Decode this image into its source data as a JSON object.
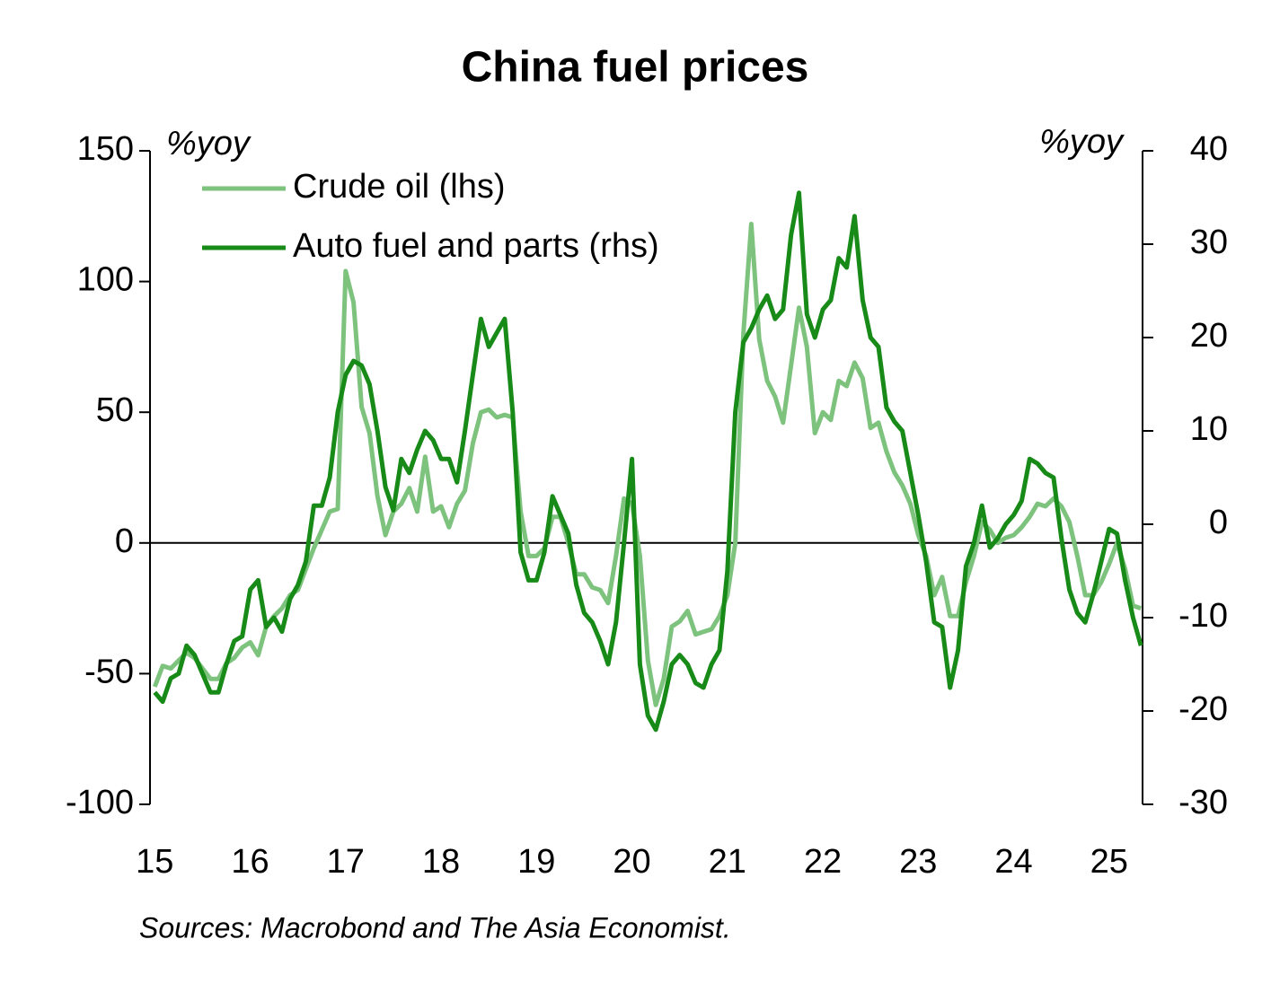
{
  "chart_data": {
    "type": "line",
    "title": "China fuel prices",
    "ylabel": "%yoy",
    "y2label": "%yoy",
    "source": "Sources: Macrobond and The Asia Economist.",
    "x": [
      15,
      15.083,
      15.167,
      15.25,
      15.333,
      15.417,
      15.5,
      15.583,
      15.667,
      15.75,
      15.833,
      15.917,
      16,
      16.083,
      16.167,
      16.25,
      16.333,
      16.417,
      16.5,
      16.583,
      16.667,
      16.75,
      16.833,
      16.917,
      17,
      17.083,
      17.167,
      17.25,
      17.333,
      17.417,
      17.5,
      17.583,
      17.667,
      17.75,
      17.833,
      17.917,
      18,
      18.083,
      18.167,
      18.25,
      18.333,
      18.417,
      18.5,
      18.583,
      18.667,
      18.75,
      18.833,
      18.917,
      19,
      19.083,
      19.167,
      19.25,
      19.333,
      19.417,
      19.5,
      19.583,
      19.667,
      19.75,
      19.833,
      19.917,
      20,
      20.083,
      20.167,
      20.25,
      20.333,
      20.417,
      20.5,
      20.583,
      20.667,
      20.75,
      20.833,
      20.917,
      21,
      21.083,
      21.167,
      21.25,
      21.333,
      21.417,
      21.5,
      21.583,
      21.667,
      21.75,
      21.833,
      21.917,
      22,
      22.083,
      22.167,
      22.25,
      22.333,
      22.417,
      22.5,
      22.583,
      22.667,
      22.75,
      22.833,
      22.917,
      23,
      23.083,
      23.167,
      23.25,
      23.333,
      23.417,
      23.5,
      23.583,
      23.667,
      23.75,
      23.833,
      23.917,
      24,
      24.083,
      24.167,
      24.25,
      24.333,
      24.417,
      24.5,
      24.583,
      24.667,
      24.75,
      24.833,
      24.917,
      25,
      25.083,
      25.167,
      25.25,
      25.333
    ],
    "series": [
      {
        "name": "Crude oil (lhs)",
        "color": "#7dc27d",
        "axis": "y",
        "values": [
          -55,
          -47,
          -48,
          -45,
          -42,
          -44,
          -48,
          -52,
          -52,
          -46,
          -44,
          -40,
          -38,
          -43,
          -32,
          -28,
          -25,
          -20,
          -18,
          -10,
          -2,
          5,
          12,
          13,
          104,
          92,
          52,
          42,
          18,
          3,
          12,
          15,
          21,
          12,
          33,
          12,
          14,
          6,
          15,
          20,
          38,
          50,
          51,
          48,
          49,
          48,
          12,
          -5,
          -5,
          -2,
          10,
          10,
          0,
          -12,
          -12,
          -17,
          -18,
          -23,
          -5,
          17,
          15,
          -5,
          -45,
          -62,
          -52,
          -32,
          -30,
          -26,
          -35,
          -34,
          -33,
          -28,
          -20,
          0,
          80,
          122,
          78,
          62,
          56,
          46,
          68,
          90,
          75,
          42,
          50,
          47,
          62,
          60,
          69,
          63,
          44,
          46,
          35,
          27,
          22,
          15,
          3,
          -5,
          -20,
          -13,
          -28,
          -28,
          -15,
          -5,
          8,
          5,
          0,
          2,
          3,
          6,
          10,
          15,
          14,
          17,
          14,
          8,
          -5,
          -20,
          -20,
          -15,
          -8,
          0,
          -10,
          -24,
          -25
        ]
      },
      {
        "name": "Auto fuel and parts (rhs)",
        "color": "#178a17",
        "axis": "y2",
        "values": [
          -18,
          -19,
          -16.5,
          -16,
          -13,
          -14,
          -16,
          -18,
          -18,
          -15,
          -12.5,
          -12,
          -7,
          -6,
          -11,
          -10,
          -11.5,
          -8,
          -6.5,
          -4,
          2,
          2,
          5,
          12,
          16,
          17.5,
          17,
          15,
          10,
          4,
          1.5,
          7,
          5.5,
          8,
          10,
          9,
          7,
          7,
          4.5,
          10,
          16,
          22,
          19,
          20.5,
          22,
          12,
          -3,
          -6,
          -6,
          -3,
          3,
          1,
          -1,
          -6.5,
          -9.5,
          -10.5,
          -12.5,
          -15,
          -10.5,
          -2,
          7,
          -15,
          -20.5,
          -22,
          -19,
          -15,
          -14,
          -15,
          -17,
          -17.5,
          -15,
          -13.5,
          -5,
          12,
          19.5,
          21,
          23,
          24.5,
          22,
          23,
          31,
          35.5,
          22.5,
          20,
          23,
          24,
          28.5,
          27.5,
          33,
          24,
          20,
          19,
          12.5,
          11,
          10,
          5.5,
          1,
          -4,
          -10.5,
          -11,
          -17.5,
          -13.5,
          -4.5,
          -2,
          2,
          -2.5,
          -1.5,
          0,
          1,
          2.5,
          7,
          6.5,
          5.5,
          5,
          -1.5,
          -7,
          -9.5,
          -10.5,
          -7.5,
          -4,
          -0.5,
          -1,
          -6,
          -10,
          -13
        ]
      }
    ],
    "xlim": [
      14.95,
      25.35
    ],
    "xticks": [
      15,
      16,
      17,
      18,
      19,
      20,
      21,
      22,
      23,
      24,
      25
    ],
    "ylim": [
      -100,
      150
    ],
    "yticks": [
      150,
      100,
      50,
      0,
      -50,
      -100
    ],
    "y2lim": [
      -30,
      40
    ],
    "y2ticks": [
      40,
      30,
      20,
      10,
      0,
      -10,
      -20,
      -30
    ],
    "legend": "top-left"
  }
}
